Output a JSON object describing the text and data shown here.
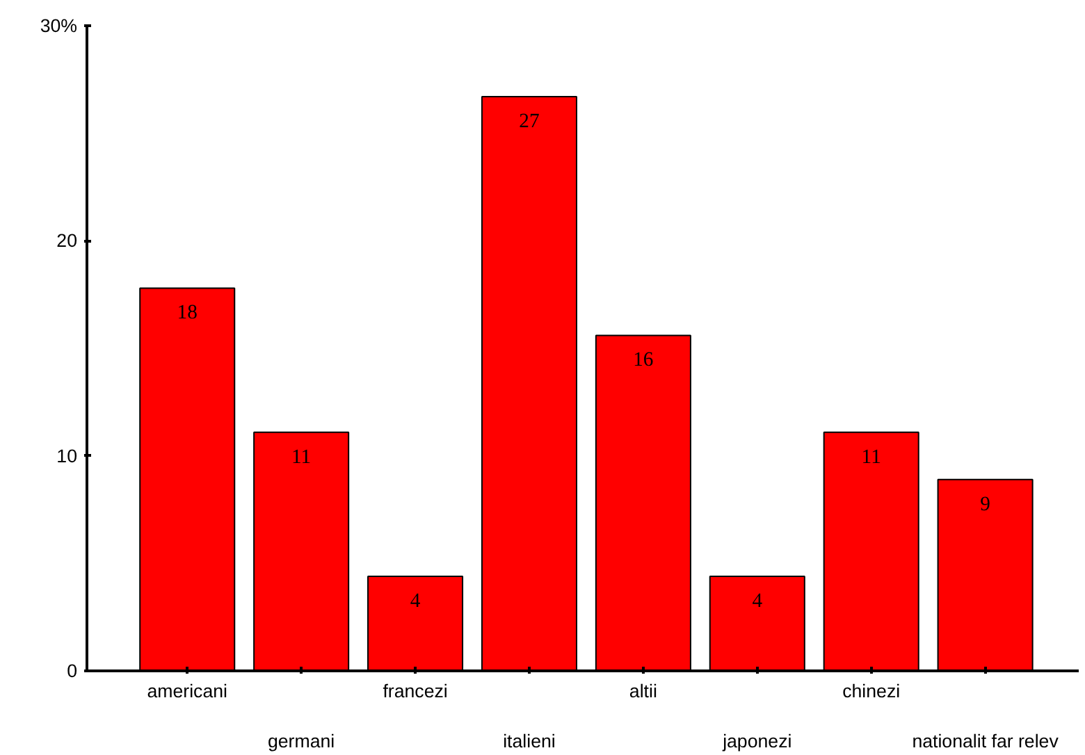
{
  "chart_data": {
    "type": "bar",
    "categories": [
      "americani",
      "germani",
      "francezi",
      "italieni",
      "altii",
      "japonezi",
      "chinezi",
      "nationalit far relev"
    ],
    "values": [
      17.8,
      11.1,
      4.4,
      26.7,
      15.6,
      4.4,
      11.1,
      8.9
    ],
    "value_labels": [
      "18",
      "11",
      "4",
      "27",
      "16",
      "4",
      "11",
      "9"
    ],
    "color": "#ff0000",
    "ylim": [
      0,
      30
    ],
    "yticks": [
      0,
      10,
      20,
      {
        "value": 30,
        "label": "30%"
      }
    ],
    "grid": false
  }
}
